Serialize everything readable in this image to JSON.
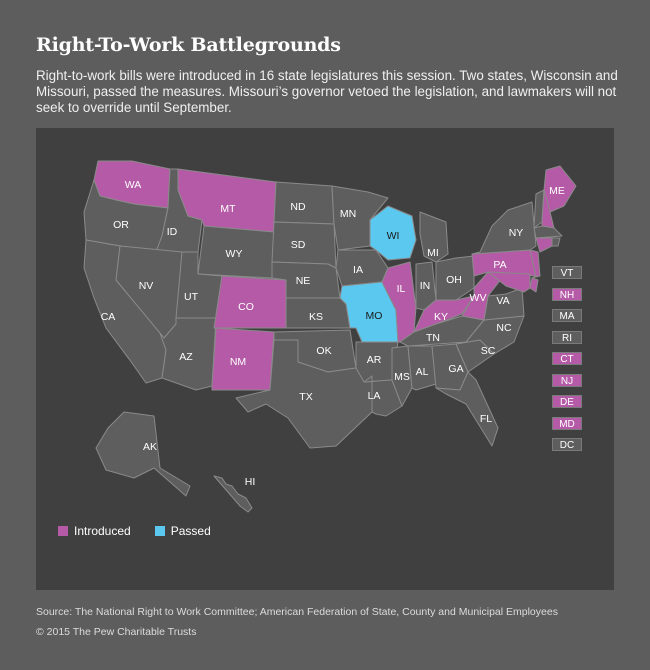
{
  "title": "Right-To-Work Battlegrounds",
  "subtitle": "Right-to-work bills were introduced in 16 state legislatures this session. Two states, Wisconsin and Missouri, passed the measures. Missouri’s governor vetoed the legislation, and lawmakers will not seek to override until September.",
  "colors": {
    "introduced": "#b55aa6",
    "passed": "#5bc8f0",
    "none": "#5e5e5e",
    "panel": "#404040",
    "page": "#5d5d5d"
  },
  "legend": [
    {
      "label": "Introduced",
      "status": "introduced"
    },
    {
      "label": "Passed",
      "status": "passed"
    }
  ],
  "states": [
    {
      "abbr": "WA",
      "status": "introduced"
    },
    {
      "abbr": "OR",
      "status": "none"
    },
    {
      "abbr": "CA",
      "status": "none"
    },
    {
      "abbr": "ID",
      "status": "none"
    },
    {
      "abbr": "NV",
      "status": "none"
    },
    {
      "abbr": "MT",
      "status": "introduced"
    },
    {
      "abbr": "WY",
      "status": "none"
    },
    {
      "abbr": "UT",
      "status": "none"
    },
    {
      "abbr": "AZ",
      "status": "none"
    },
    {
      "abbr": "CO",
      "status": "introduced"
    },
    {
      "abbr": "NM",
      "status": "introduced"
    },
    {
      "abbr": "ND",
      "status": "none"
    },
    {
      "abbr": "SD",
      "status": "none"
    },
    {
      "abbr": "NE",
      "status": "none"
    },
    {
      "abbr": "KS",
      "status": "none"
    },
    {
      "abbr": "OK",
      "status": "none"
    },
    {
      "abbr": "TX",
      "status": "none"
    },
    {
      "abbr": "MN",
      "status": "none"
    },
    {
      "abbr": "IA",
      "status": "none"
    },
    {
      "abbr": "MO",
      "status": "passed"
    },
    {
      "abbr": "AR",
      "status": "none"
    },
    {
      "abbr": "LA",
      "status": "none"
    },
    {
      "abbr": "WI",
      "status": "passed"
    },
    {
      "abbr": "IL",
      "status": "introduced"
    },
    {
      "abbr": "MI",
      "status": "none"
    },
    {
      "abbr": "IN",
      "status": "none"
    },
    {
      "abbr": "OH",
      "status": "none"
    },
    {
      "abbr": "KY",
      "status": "introduced"
    },
    {
      "abbr": "TN",
      "status": "none"
    },
    {
      "abbr": "MS",
      "status": "none"
    },
    {
      "abbr": "AL",
      "status": "none"
    },
    {
      "abbr": "GA",
      "status": "none"
    },
    {
      "abbr": "FL",
      "status": "none"
    },
    {
      "abbr": "SC",
      "status": "none"
    },
    {
      "abbr": "NC",
      "status": "none"
    },
    {
      "abbr": "VA",
      "status": "none"
    },
    {
      "abbr": "WV",
      "status": "introduced"
    },
    {
      "abbr": "PA",
      "status": "introduced"
    },
    {
      "abbr": "NY",
      "status": "none"
    },
    {
      "abbr": "ME",
      "status": "introduced"
    },
    {
      "abbr": "AK",
      "status": "none"
    },
    {
      "abbr": "HI",
      "status": "none"
    }
  ],
  "small_states": [
    {
      "abbr": "VT",
      "status": "none"
    },
    {
      "abbr": "NH",
      "status": "introduced"
    },
    {
      "abbr": "MA",
      "status": "none"
    },
    {
      "abbr": "RI",
      "status": "none"
    },
    {
      "abbr": "CT",
      "status": "introduced"
    },
    {
      "abbr": "NJ",
      "status": "introduced"
    },
    {
      "abbr": "DE",
      "status": "introduced"
    },
    {
      "abbr": "MD",
      "status": "introduced"
    },
    {
      "abbr": "DC",
      "status": "none"
    }
  ],
  "source": "Source: The National Right to Work Committee; American Federation of State, County and Municipal Employees",
  "copyright": "© 2015 The Pew Charitable Trusts"
}
